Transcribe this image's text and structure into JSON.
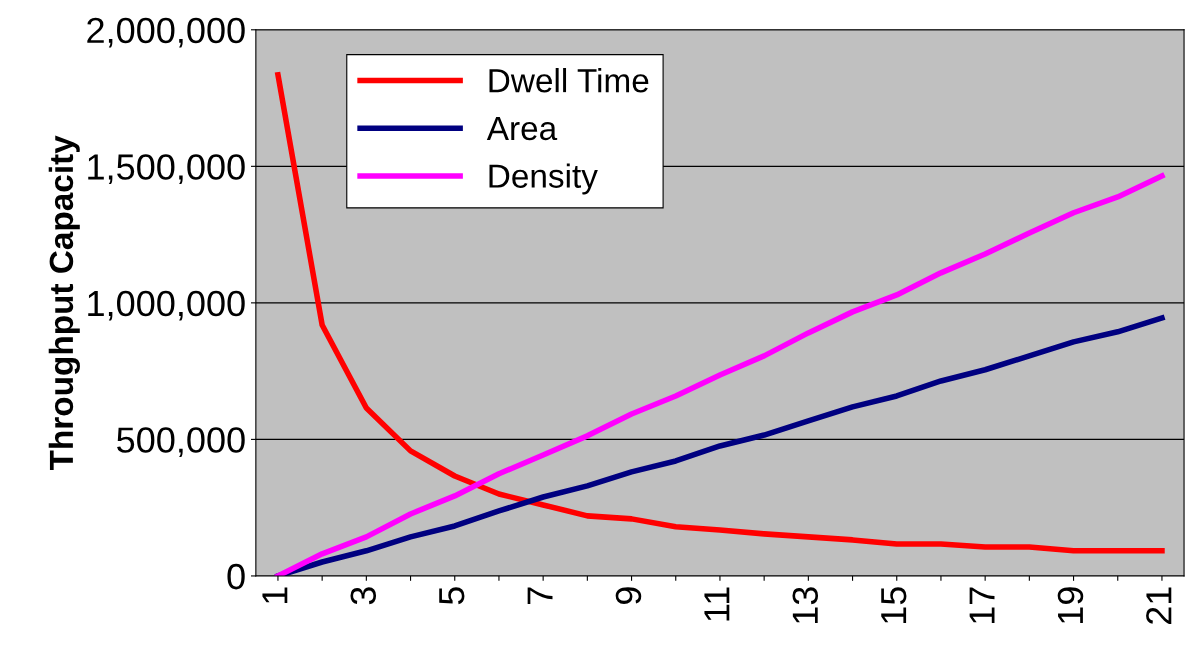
{
  "chart_data": {
    "type": "line",
    "ylabel": "Throughput Capacity",
    "categories": [
      "1",
      null,
      "3",
      null,
      "5",
      null,
      "7",
      null,
      "9",
      null,
      "11",
      null,
      "13",
      null,
      "15",
      null,
      "17",
      null,
      "19",
      null,
      "21"
    ],
    "series": [
      {
        "name": "Dwell Time",
        "color": "#ff0000",
        "values": [
          1835000,
          919000,
          615000,
          458000,
          366000,
          300000,
          260000,
          220000,
          209000,
          180000,
          168000,
          154000,
          143000,
          132000,
          117000,
          117000,
          106000,
          106000,
          92000,
          92000,
          92000
        ]
      },
      {
        "name": "Area",
        "color": "#000080",
        "values": [
          0,
          51000,
          92000,
          143000,
          183000,
          238000,
          289000,
          330000,
          381000,
          421000,
          476000,
          516000,
          568000,
          619000,
          659000,
          714000,
          755000,
          806000,
          857000,
          894000,
          945000
        ]
      },
      {
        "name": "Density",
        "color": "#ff00ff",
        "values": [
          0,
          81000,
          143000,
          227000,
          293000,
          374000,
          443000,
          513000,
          593000,
          659000,
          736000,
          806000,
          890000,
          967000,
          1029000,
          1110000,
          1179000,
          1256000,
          1330000,
          1388000,
          1465000
        ]
      }
    ],
    "ylim": [
      0,
      2000000
    ],
    "yticks": [
      {
        "value": 0,
        "label": "0"
      },
      {
        "value": 500000,
        "label": "500,000"
      },
      {
        "value": 1000000,
        "label": "1,000,000"
      },
      {
        "value": 1500000,
        "label": "1,500,000"
      },
      {
        "value": 2000000,
        "label": "2,000,000"
      }
    ],
    "grid": "y",
    "legend": "top left",
    "marker": "none",
    "line_style": "solid"
  }
}
